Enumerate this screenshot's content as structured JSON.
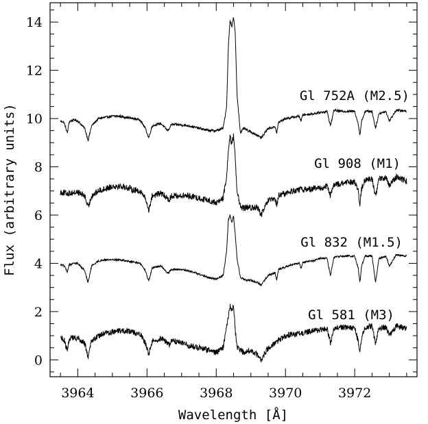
{
  "chart_data": {
    "type": "line",
    "xlabel": "Wavelength [Å]",
    "ylabel": "Flux (arbitrary units)",
    "xlim": [
      3963.2,
      3973.8
    ],
    "ylim": [
      -0.7,
      14.8
    ],
    "x_ticks": [
      3964,
      3966,
      3968,
      3970,
      3972
    ],
    "x_tick_labels": [
      "3964",
      "3966",
      "3968",
      "3970",
      "3972"
    ],
    "y_ticks": [
      0,
      2,
      4,
      6,
      8,
      10,
      12,
      14
    ],
    "y_tick_labels": [
      "0",
      "2",
      "4",
      "6",
      "8",
      "10",
      "12",
      "14"
    ],
    "grid": false,
    "series": [
      {
        "name": "Gl 752A (M2.5)",
        "color": "#000000",
        "noise": 0.05,
        "x": [
          3963.5,
          3963.6,
          3963.7,
          3963.75,
          3963.8,
          3963.9,
          3964.0,
          3964.2,
          3964.3,
          3964.4,
          3964.6,
          3964.8,
          3965.0,
          3965.2,
          3965.4,
          3965.6,
          3965.8,
          3965.95,
          3966.05,
          3966.15,
          3966.4,
          3966.6,
          3966.65,
          3966.7,
          3966.9,
          3967.2,
          3967.5,
          3967.8,
          3968.0,
          3968.2,
          3968.3,
          3968.35,
          3968.4,
          3968.45,
          3968.5,
          3968.55,
          3968.6,
          3968.7,
          3968.8,
          3968.9,
          3969.0,
          3969.2,
          3969.3,
          3969.5,
          3969.7,
          3969.75,
          3969.8,
          3970.0,
          3970.2,
          3970.4,
          3970.45,
          3970.5,
          3970.8,
          3971.0,
          3971.2,
          3971.3,
          3971.4,
          3971.6,
          3971.8,
          3972.0,
          3972.1,
          3972.15,
          3972.2,
          3972.3,
          3972.5,
          3972.6,
          3972.7,
          3972.9,
          3973.0,
          3973.2,
          3973.5
        ],
        "y": [
          9.9,
          9.85,
          9.4,
          9.85,
          9.9,
          9.95,
          9.9,
          9.6,
          9.1,
          9.7,
          10.0,
          10.05,
          10.1,
          10.1,
          10.05,
          10.0,
          9.95,
          9.6,
          9.2,
          9.7,
          9.8,
          9.5,
          9.6,
          9.75,
          9.75,
          9.7,
          9.6,
          9.5,
          9.5,
          9.6,
          10.5,
          13.0,
          14.1,
          13.8,
          14.2,
          13.5,
          11.0,
          9.4,
          9.6,
          9.5,
          9.45,
          9.3,
          9.2,
          9.6,
          9.65,
          9.4,
          9.85,
          10.0,
          10.05,
          10.1,
          9.9,
          10.15,
          10.2,
          10.25,
          10.3,
          9.7,
          10.35,
          10.3,
          10.3,
          10.3,
          9.8,
          9.3,
          9.9,
          10.3,
          10.3,
          9.6,
          10.2,
          10.3,
          9.9,
          10.35,
          10.3
        ]
      },
      {
        "name": "Gl 908 (M1)",
        "color": "#000000",
        "noise": 0.13,
        "x": [
          3963.5,
          3963.7,
          3964.0,
          3964.2,
          3964.3,
          3964.4,
          3964.6,
          3964.8,
          3965.0,
          3965.2,
          3965.4,
          3965.6,
          3965.8,
          3965.95,
          3966.05,
          3966.15,
          3966.4,
          3966.6,
          3966.65,
          3966.7,
          3966.9,
          3967.2,
          3967.5,
          3967.8,
          3968.0,
          3968.2,
          3968.3,
          3968.35,
          3968.4,
          3968.45,
          3968.5,
          3968.55,
          3968.6,
          3968.7,
          3968.8,
          3969.0,
          3969.2,
          3969.3,
          3969.5,
          3969.7,
          3969.75,
          3969.8,
          3970.0,
          3970.2,
          3970.4,
          3970.5,
          3970.8,
          3971.0,
          3971.2,
          3971.3,
          3971.4,
          3971.6,
          3971.8,
          3972.0,
          3972.1,
          3972.15,
          3972.2,
          3972.3,
          3972.5,
          3972.6,
          3972.7,
          3972.9,
          3973.0,
          3973.2,
          3973.5
        ],
        "y": [
          6.95,
          6.9,
          6.95,
          6.8,
          6.3,
          6.8,
          7.0,
          7.1,
          7.2,
          7.2,
          7.15,
          7.05,
          7.0,
          6.7,
          6.2,
          6.8,
          6.9,
          6.7,
          6.6,
          6.8,
          6.8,
          6.8,
          6.7,
          6.6,
          6.5,
          6.7,
          7.6,
          8.7,
          9.3,
          8.9,
          9.3,
          8.4,
          7.0,
          6.3,
          6.3,
          6.3,
          6.3,
          6.0,
          6.6,
          6.65,
          6.4,
          6.8,
          6.9,
          7.0,
          7.05,
          7.05,
          7.1,
          7.1,
          7.2,
          6.8,
          7.25,
          7.3,
          7.35,
          7.4,
          7.0,
          6.4,
          7.1,
          7.45,
          7.5,
          6.8,
          7.5,
          7.55,
          7.2,
          7.6,
          7.4
        ]
      },
      {
        "name": "Gl 832 (M1.5)",
        "color": "#000000",
        "noise": 0.04,
        "x": [
          3963.5,
          3963.6,
          3963.7,
          3963.75,
          3963.8,
          3963.9,
          3964.0,
          3964.2,
          3964.3,
          3964.4,
          3964.6,
          3964.8,
          3965.0,
          3965.2,
          3965.4,
          3965.6,
          3965.8,
          3965.95,
          3966.05,
          3966.15,
          3966.4,
          3966.6,
          3966.65,
          3966.7,
          3966.9,
          3967.2,
          3967.5,
          3967.8,
          3968.0,
          3968.2,
          3968.3,
          3968.35,
          3968.4,
          3968.45,
          3968.5,
          3968.55,
          3968.6,
          3968.7,
          3968.8,
          3968.9,
          3969.0,
          3969.2,
          3969.3,
          3969.5,
          3969.7,
          3969.75,
          3969.8,
          3970.0,
          3970.2,
          3970.4,
          3970.45,
          3970.5,
          3970.8,
          3971.0,
          3971.2,
          3971.3,
          3971.4,
          3971.6,
          3971.8,
          3972.0,
          3972.1,
          3972.15,
          3972.2,
          3972.3,
          3972.5,
          3972.6,
          3972.7,
          3972.9,
          3973.0,
          3973.2,
          3973.5
        ],
        "y": [
          3.95,
          3.9,
          3.65,
          3.95,
          3.95,
          4.0,
          4.0,
          3.7,
          3.2,
          3.9,
          4.1,
          4.15,
          4.15,
          4.15,
          4.1,
          4.05,
          4.0,
          3.7,
          3.25,
          3.8,
          3.9,
          3.6,
          3.65,
          3.75,
          3.75,
          3.7,
          3.55,
          3.4,
          3.35,
          3.5,
          4.5,
          5.8,
          6.0,
          5.7,
          5.95,
          5.2,
          4.2,
          3.4,
          3.35,
          3.3,
          3.3,
          3.2,
          3.1,
          3.5,
          3.6,
          3.3,
          3.75,
          3.85,
          3.95,
          4.0,
          3.8,
          4.05,
          4.1,
          4.2,
          4.2,
          3.5,
          4.25,
          4.3,
          4.3,
          4.3,
          3.8,
          3.2,
          3.9,
          4.3,
          4.3,
          3.2,
          4.2,
          4.3,
          3.9,
          4.35,
          4.3
        ]
      },
      {
        "name": "Gl 581 (M3)",
        "color": "#000000",
        "noise": 0.12,
        "x": [
          3963.5,
          3963.6,
          3963.7,
          3963.75,
          3963.8,
          3964.0,
          3964.2,
          3964.3,
          3964.4,
          3964.6,
          3964.8,
          3965.0,
          3965.2,
          3965.4,
          3965.6,
          3965.8,
          3965.95,
          3966.05,
          3966.15,
          3966.4,
          3966.6,
          3966.65,
          3966.7,
          3966.9,
          3967.2,
          3967.5,
          3967.8,
          3968.0,
          3968.2,
          3968.35,
          3968.4,
          3968.45,
          3968.5,
          3968.55,
          3968.6,
          3968.8,
          3969.0,
          3969.2,
          3969.3,
          3969.5,
          3969.7,
          3970.0,
          3970.2,
          3970.4,
          3970.8,
          3971.0,
          3971.2,
          3971.3,
          3971.4,
          3971.6,
          3971.8,
          3972.0,
          3972.1,
          3972.15,
          3972.2,
          3972.3,
          3972.5,
          3972.6,
          3972.7,
          3972.9,
          3973.0,
          3973.2,
          3973.5
        ],
        "y": [
          0.9,
          0.85,
          0.4,
          0.85,
          0.9,
          0.9,
          0.7,
          0.1,
          0.8,
          1.0,
          1.1,
          1.15,
          1.2,
          1.2,
          1.15,
          1.1,
          0.7,
          0.2,
          0.8,
          0.9,
          0.7,
          0.6,
          0.8,
          0.75,
          0.6,
          0.5,
          0.4,
          0.3,
          0.5,
          1.8,
          2.3,
          2.0,
          2.3,
          1.2,
          0.5,
          0.3,
          0.4,
          0.2,
          0.0,
          0.5,
          0.7,
          1.0,
          1.05,
          1.1,
          1.2,
          1.25,
          1.3,
          0.7,
          1.3,
          1.35,
          1.35,
          1.3,
          0.8,
          0.3,
          0.9,
          1.35,
          1.4,
          0.7,
          1.3,
          1.35,
          1.0,
          1.4,
          1.3
        ]
      }
    ],
    "annotations": [
      "Gl 752A (M2.5)",
      "Gl 908 (M1)",
      "Gl 832 (M1.5)",
      "Gl 581 (M3)"
    ]
  }
}
